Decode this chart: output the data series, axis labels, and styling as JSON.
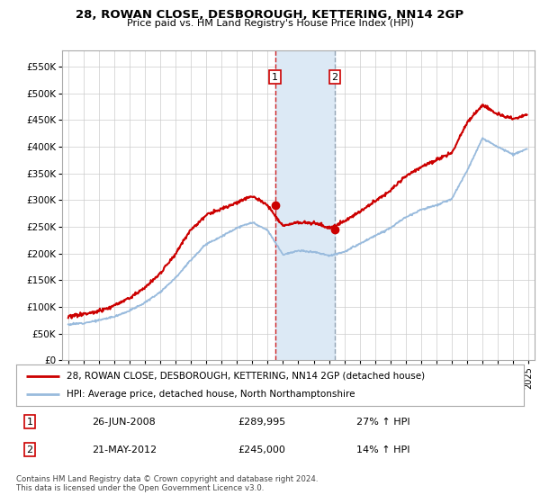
{
  "title": "28, ROWAN CLOSE, DESBOROUGH, KETTERING, NN14 2GP",
  "subtitle": "Price paid vs. HM Land Registry's House Price Index (HPI)",
  "ylabel_ticks": [
    "£0",
    "£50K",
    "£100K",
    "£150K",
    "£200K",
    "£250K",
    "£300K",
    "£350K",
    "£400K",
    "£450K",
    "£500K",
    "£550K"
  ],
  "ylabel_values": [
    0,
    50000,
    100000,
    150000,
    200000,
    250000,
    300000,
    350000,
    400000,
    450000,
    500000,
    550000
  ],
  "xlim_left": 1994.6,
  "xlim_right": 2025.4,
  "ylim": [
    0,
    580000
  ],
  "sale1_date": 2008.48,
  "sale1_price": 289995,
  "sale2_date": 2012.38,
  "sale2_price": 245000,
  "legend_line1": "28, ROWAN CLOSE, DESBOROUGH, KETTERING, NN14 2GP (detached house)",
  "legend_line2": "HPI: Average price, detached house, North Northamptonshire",
  "table_row1": [
    "1",
    "26-JUN-2008",
    "£289,995",
    "27% ↑ HPI"
  ],
  "table_row2": [
    "2",
    "21-MAY-2012",
    "£245,000",
    "14% ↑ HPI"
  ],
  "footer": "Contains HM Land Registry data © Crown copyright and database right 2024.\nThis data is licensed under the Open Government Licence v3.0.",
  "house_color": "#cc0000",
  "hpi_color": "#99bbdd",
  "shade_color": "#dce9f5",
  "vline1_color": "#cc0000",
  "vline2_color": "#8899aa",
  "background_color": "#ffffff",
  "grid_color": "#cccccc",
  "hpi_years": [
    1995,
    1996,
    1997,
    1998,
    1999,
    2000,
    2001,
    2002,
    2003,
    2004,
    2005,
    2006,
    2007,
    2008,
    2009,
    2010,
    2011,
    2012,
    2013,
    2014,
    2015,
    2016,
    2017,
    2018,
    2019,
    2020,
    2021,
    2022,
    2023,
    2024,
    2024.9
  ],
  "hpi_vals": [
    67000,
    70000,
    75000,
    82000,
    93000,
    108000,
    128000,
    155000,
    188000,
    218000,
    232000,
    248000,
    258000,
    243000,
    198000,
    205000,
    203000,
    196000,
    203000,
    218000,
    233000,
    248000,
    268000,
    282000,
    290000,
    302000,
    355000,
    415000,
    400000,
    385000,
    395000
  ],
  "prop_years": [
    1995,
    1996,
    1997,
    1998,
    1999,
    2000,
    2001,
    2002,
    2003,
    2004,
    2005,
    2006,
    2007,
    2008,
    2009,
    2010,
    2011,
    2012,
    2013,
    2014,
    2015,
    2016,
    2017,
    2018,
    2019,
    2020,
    2021,
    2022,
    2023,
    2024,
    2024.9
  ],
  "prop_vals": [
    82000,
    86000,
    92000,
    102000,
    117000,
    136000,
    163000,
    200000,
    245000,
    272000,
    283000,
    295000,
    308000,
    290000,
    252000,
    258000,
    258000,
    248000,
    260000,
    278000,
    298000,
    318000,
    345000,
    362000,
    375000,
    388000,
    445000,
    478000,
    460000,
    452000,
    460000
  ]
}
